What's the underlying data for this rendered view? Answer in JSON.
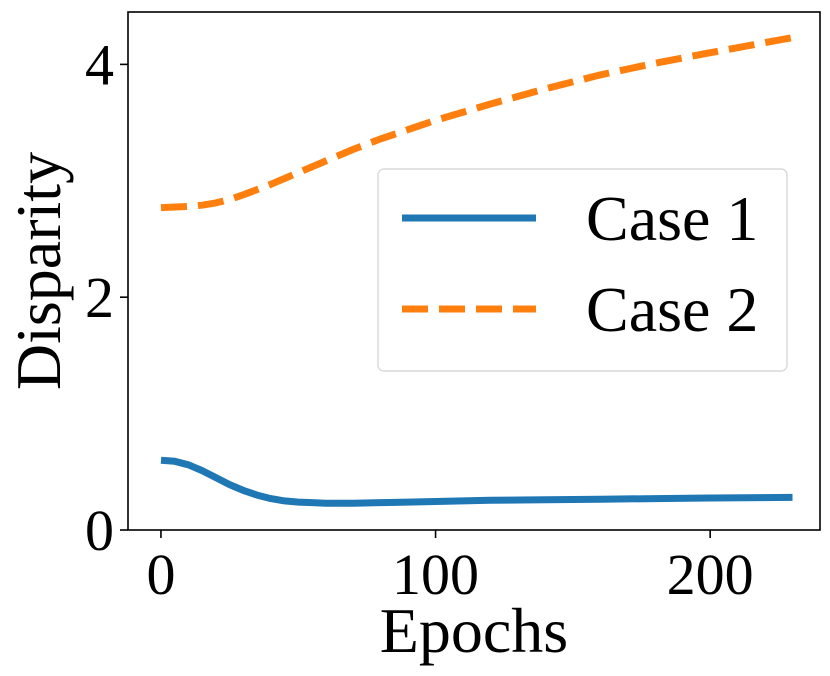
{
  "chart_data": {
    "type": "line",
    "xlabel": "Epochs",
    "ylabel": "Disparity",
    "xlim": [
      -12,
      240
    ],
    "ylim": [
      0,
      4.45
    ],
    "xticks": [
      0,
      100,
      200
    ],
    "yticks": [
      0,
      2,
      4
    ],
    "grid": false,
    "legend_position": "center-right",
    "series": [
      {
        "name": "Case 1",
        "color": "#1f77b4",
        "linestyle": "solid",
        "x": [
          0,
          5,
          10,
          15,
          20,
          25,
          30,
          35,
          40,
          45,
          50,
          55,
          60,
          70,
          80,
          90,
          100,
          120,
          140,
          160,
          180,
          200,
          230
        ],
        "y": [
          0.6,
          0.59,
          0.56,
          0.51,
          0.45,
          0.39,
          0.34,
          0.3,
          0.27,
          0.25,
          0.24,
          0.235,
          0.23,
          0.23,
          0.235,
          0.24,
          0.245,
          0.255,
          0.26,
          0.265,
          0.27,
          0.275,
          0.28
        ]
      },
      {
        "name": "Case 2",
        "color": "#ff7f0e",
        "linestyle": "dashed",
        "x": [
          0,
          10,
          15,
          20,
          25,
          30,
          40,
          50,
          60,
          70,
          80,
          90,
          100,
          120,
          140,
          160,
          180,
          200,
          230
        ],
        "y": [
          2.77,
          2.78,
          2.79,
          2.81,
          2.84,
          2.88,
          2.97,
          3.07,
          3.17,
          3.27,
          3.36,
          3.44,
          3.52,
          3.66,
          3.79,
          3.91,
          4.01,
          4.1,
          4.23
        ]
      }
    ]
  }
}
